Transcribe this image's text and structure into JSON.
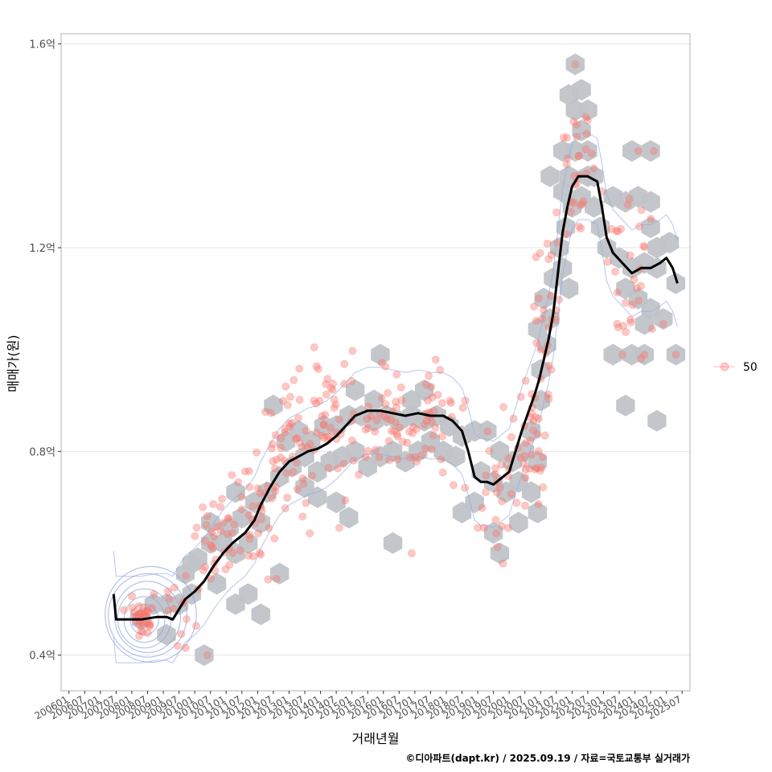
{
  "chart_data": {
    "type": "scatter",
    "title": "",
    "xlabel": "거래년월",
    "ylabel": "매매가(원)",
    "caption": "©디아파트(dapt.kr) / 2025.09.19 / 자료=국토교통부 실거래가",
    "x_tick_labels": [
      "200601",
      "200607",
      "200701",
      "200707",
      "200801",
      "200807",
      "200901",
      "200907",
      "201001",
      "201007",
      "201101",
      "201107",
      "201201",
      "201207",
      "201301",
      "201307",
      "201401",
      "201407",
      "201501",
      "201507",
      "201601",
      "201607",
      "201701",
      "201707",
      "201801",
      "201807",
      "201901",
      "201907",
      "202001",
      "202007",
      "202101",
      "202107",
      "202201",
      "202207",
      "202301",
      "202307",
      "202401",
      "202407",
      "202501",
      "202507"
    ],
    "y_ticks": [
      {
        "value": 0.4,
        "label": "0.4억"
      },
      {
        "value": 0.8,
        "label": "0.8억"
      },
      {
        "value": 1.2,
        "label": "1.2억"
      },
      {
        "value": 1.6,
        "label": "1.6억"
      }
    ],
    "xlim": [
      2005.75,
      2025.75
    ],
    "ylim": [
      0.33,
      1.62
    ],
    "legend": {
      "label": "50",
      "position": "right"
    },
    "colors": {
      "points": "#f8766d",
      "hex": "#c0c4c8",
      "line": "#000000",
      "contour": "#8fa8e8"
    },
    "moving_average": [
      [
        2007.42,
        0.52
      ],
      [
        2007.5,
        0.47
      ],
      [
        2007.8,
        0.47
      ],
      [
        2008.3,
        0.47
      ],
      [
        2008.8,
        0.475
      ],
      [
        2009.1,
        0.475
      ],
      [
        2009.3,
        0.47
      ],
      [
        2009.5,
        0.49
      ],
      [
        2009.7,
        0.51
      ],
      [
        2010.0,
        0.525
      ],
      [
        2010.3,
        0.545
      ],
      [
        2010.6,
        0.575
      ],
      [
        2010.9,
        0.6
      ],
      [
        2011.2,
        0.62
      ],
      [
        2011.6,
        0.64
      ],
      [
        2011.9,
        0.665
      ],
      [
        2012.1,
        0.695
      ],
      [
        2012.4,
        0.73
      ],
      [
        2012.7,
        0.76
      ],
      [
        2013.0,
        0.78
      ],
      [
        2013.3,
        0.79
      ],
      [
        2013.6,
        0.8
      ],
      [
        2013.9,
        0.805
      ],
      [
        2014.2,
        0.815
      ],
      [
        2014.5,
        0.83
      ],
      [
        2014.8,
        0.85
      ],
      [
        2015.1,
        0.87
      ],
      [
        2015.5,
        0.88
      ],
      [
        2015.9,
        0.88
      ],
      [
        2016.3,
        0.875
      ],
      [
        2016.7,
        0.87
      ],
      [
        2017.1,
        0.875
      ],
      [
        2017.5,
        0.87
      ],
      [
        2017.9,
        0.87
      ],
      [
        2018.2,
        0.86
      ],
      [
        2018.5,
        0.84
      ],
      [
        2018.7,
        0.8
      ],
      [
        2018.9,
        0.75
      ],
      [
        2019.1,
        0.74
      ],
      [
        2019.3,
        0.74
      ],
      [
        2019.5,
        0.735
      ],
      [
        2019.7,
        0.745
      ],
      [
        2020.0,
        0.76
      ],
      [
        2020.2,
        0.8
      ],
      [
        2020.4,
        0.84
      ],
      [
        2020.6,
        0.875
      ],
      [
        2020.8,
        0.91
      ],
      [
        2020.95,
        0.94
      ],
      [
        2021.1,
        0.98
      ],
      [
        2021.25,
        1.02
      ],
      [
        2021.4,
        1.07
      ],
      [
        2021.55,
        1.15
      ],
      [
        2021.7,
        1.23
      ],
      [
        2021.85,
        1.28
      ],
      [
        2022.0,
        1.32
      ],
      [
        2022.2,
        1.34
      ],
      [
        2022.5,
        1.34
      ],
      [
        2022.8,
        1.33
      ],
      [
        2022.95,
        1.28
      ],
      [
        2023.1,
        1.22
      ],
      [
        2023.3,
        1.19
      ],
      [
        2023.6,
        1.17
      ],
      [
        2023.9,
        1.15
      ],
      [
        2024.2,
        1.16
      ],
      [
        2024.5,
        1.16
      ],
      [
        2024.8,
        1.17
      ],
      [
        2025.0,
        1.18
      ],
      [
        2025.2,
        1.16
      ],
      [
        2025.35,
        1.13
      ]
    ],
    "point_clusters": [
      {
        "x": 2008.3,
        "y": 0.47,
        "sx": 0.35,
        "sy": 0.02,
        "n": 34
      },
      {
        "x": 2009.5,
        "y": 0.5,
        "sx": 0.45,
        "sy": 0.04,
        "n": 14
      },
      {
        "x": 2010.7,
        "y": 0.62,
        "sx": 0.6,
        "sy": 0.04,
        "n": 32
      },
      {
        "x": 2011.9,
        "y": 0.7,
        "sx": 0.55,
        "sy": 0.06,
        "n": 32
      },
      {
        "x": 2013.0,
        "y": 0.79,
        "sx": 0.7,
        "sy": 0.07,
        "n": 44
      },
      {
        "x": 2014.5,
        "y": 0.85,
        "sx": 0.8,
        "sy": 0.06,
        "n": 50
      },
      {
        "x": 2016.2,
        "y": 0.86,
        "sx": 0.8,
        "sy": 0.05,
        "n": 40
      },
      {
        "x": 2017.7,
        "y": 0.85,
        "sx": 0.7,
        "sy": 0.06,
        "n": 32
      },
      {
        "x": 2019.6,
        "y": 0.74,
        "sx": 0.6,
        "sy": 0.07,
        "n": 28
      },
      {
        "x": 2020.7,
        "y": 0.8,
        "sx": 0.4,
        "sy": 0.07,
        "n": 30
      },
      {
        "x": 2021.2,
        "y": 1.02,
        "sx": 0.35,
        "sy": 0.12,
        "n": 26
      },
      {
        "x": 2022.2,
        "y": 1.34,
        "sx": 0.5,
        "sy": 0.06,
        "n": 30
      },
      {
        "x": 2023.8,
        "y": 1.17,
        "sx": 0.8,
        "sy": 0.09,
        "n": 30
      }
    ],
    "outlier_points": [
      [
        2010.4,
        0.4
      ],
      [
        2014.6,
        0.65
      ],
      [
        2016.9,
        0.6
      ],
      [
        2017.8,
        0.96
      ],
      [
        2019.0,
        0.65
      ],
      [
        2019.8,
        0.58
      ],
      [
        2021.0,
        1.0
      ],
      [
        2022.1,
        1.56
      ],
      [
        2022.5,
        1.45
      ],
      [
        2023.6,
        0.99
      ],
      [
        2024.3,
        0.99
      ],
      [
        2024.1,
        1.39
      ],
      [
        2024.6,
        1.39
      ],
      [
        2024.9,
        1.05
      ],
      [
        2025.3,
        0.99
      ],
      [
        2012.6,
        0.55
      ],
      [
        2008.7,
        0.52
      ]
    ],
    "hex_centers": [
      [
        2008.3,
        0.47
      ],
      [
        2008.7,
        0.5
      ],
      [
        2009.1,
        0.5
      ],
      [
        2009.5,
        0.5
      ],
      [
        2009.9,
        0.52
      ],
      [
        2009.7,
        0.56
      ],
      [
        2010.1,
        0.59
      ],
      [
        2010.5,
        0.62
      ],
      [
        2010.9,
        0.62
      ],
      [
        2010.5,
        0.66
      ],
      [
        2011.3,
        0.6
      ],
      [
        2011.7,
        0.62
      ],
      [
        2011.1,
        0.65
      ],
      [
        2011.5,
        0.67
      ],
      [
        2011.9,
        0.7
      ],
      [
        2012.3,
        0.72
      ],
      [
        2011.3,
        0.72
      ],
      [
        2012.1,
        0.66
      ],
      [
        2012.7,
        0.75
      ],
      [
        2013.1,
        0.77
      ],
      [
        2013.5,
        0.79
      ],
      [
        2012.9,
        0.82
      ],
      [
        2013.3,
        0.84
      ],
      [
        2013.7,
        0.82
      ],
      [
        2014.1,
        0.85
      ],
      [
        2014.5,
        0.85
      ],
      [
        2014.9,
        0.87
      ],
      [
        2015.3,
        0.87
      ],
      [
        2015.7,
        0.86
      ],
      [
        2016.1,
        0.87
      ],
      [
        2016.5,
        0.86
      ],
      [
        2016.9,
        0.87
      ],
      [
        2017.3,
        0.86
      ],
      [
        2017.7,
        0.87
      ],
      [
        2018.1,
        0.85
      ],
      [
        2018.5,
        0.83
      ],
      [
        2013.9,
        0.76
      ],
      [
        2014.3,
        0.78
      ],
      [
        2014.7,
        0.79
      ],
      [
        2015.1,
        0.8
      ],
      [
        2015.5,
        0.77
      ],
      [
        2015.9,
        0.79
      ],
      [
        2016.3,
        0.8
      ],
      [
        2016.7,
        0.78
      ],
      [
        2017.1,
        0.8
      ],
      [
        2017.5,
        0.82
      ],
      [
        2017.9,
        0.8
      ],
      [
        2018.3,
        0.79
      ],
      [
        2012.5,
        0.89
      ],
      [
        2015.1,
        0.92
      ],
      [
        2015.7,
        0.9
      ],
      [
        2016.9,
        0.9
      ],
      [
        2017.3,
        0.92
      ],
      [
        2015.9,
        0.99
      ],
      [
        2018.9,
        0.84
      ],
      [
        2019.3,
        0.84
      ],
      [
        2019.7,
        0.8
      ],
      [
        2020.1,
        0.78
      ],
      [
        2019.1,
        0.76
      ],
      [
        2019.5,
        0.74
      ],
      [
        2019.9,
        0.72
      ],
      [
        2020.3,
        0.74
      ],
      [
        2020.5,
        0.8
      ],
      [
        2020.7,
        0.84
      ],
      [
        2020.9,
        0.78
      ],
      [
        2020.7,
        0.72
      ],
      [
        2020.9,
        0.68
      ],
      [
        2020.3,
        0.66
      ],
      [
        2019.5,
        0.64
      ],
      [
        2019.7,
        0.6
      ],
      [
        2018.9,
        0.7
      ],
      [
        2018.5,
        0.68
      ],
      [
        2014.5,
        0.7
      ],
      [
        2014.9,
        0.67
      ],
      [
        2013.9,
        0.71
      ],
      [
        2013.5,
        0.73
      ],
      [
        2016.3,
        0.62
      ],
      [
        2012.7,
        0.56
      ],
      [
        2009.1,
        0.44
      ],
      [
        2010.3,
        0.4
      ],
      [
        2011.7,
        0.52
      ],
      [
        2011.3,
        0.5
      ],
      [
        2012.1,
        0.48
      ],
      [
        2009.9,
        0.58
      ],
      [
        2010.7,
        0.54
      ],
      [
        2021.0,
        0.9
      ],
      [
        2021.0,
        0.96
      ],
      [
        2021.2,
        1.01
      ],
      [
        2020.9,
        1.04
      ],
      [
        2021.3,
        1.06
      ],
      [
        2021.1,
        1.1
      ],
      [
        2021.4,
        1.14
      ],
      [
        2021.7,
        1.16
      ],
      [
        2021.9,
        1.12
      ],
      [
        2021.6,
        1.2
      ],
      [
        2021.8,
        1.24
      ],
      [
        2022.0,
        1.28
      ],
      [
        2021.7,
        1.31
      ],
      [
        2021.3,
        1.34
      ],
      [
        2021.9,
        1.34
      ],
      [
        2022.3,
        1.3
      ],
      [
        2022.5,
        1.34
      ],
      [
        2022.7,
        1.28
      ],
      [
        2022.9,
        1.24
      ],
      [
        2021.7,
        1.39
      ],
      [
        2022.1,
        1.39
      ],
      [
        2022.5,
        1.39
      ],
      [
        2022.3,
        1.43
      ],
      [
        2022.1,
        1.47
      ],
      [
        2022.5,
        1.47
      ],
      [
        2021.9,
        1.5
      ],
      [
        2022.3,
        1.51
      ],
      [
        2022.1,
        1.56
      ],
      [
        2022.7,
        1.34
      ],
      [
        2023.3,
        1.3
      ],
      [
        2023.7,
        1.29
      ],
      [
        2024.1,
        1.3
      ],
      [
        2024.5,
        1.29
      ],
      [
        2023.1,
        1.2
      ],
      [
        2023.5,
        1.18
      ],
      [
        2023.9,
        1.16
      ],
      [
        2024.3,
        1.17
      ],
      [
        2024.7,
        1.16
      ],
      [
        2024.5,
        1.24
      ],
      [
        2024.7,
        1.2
      ],
      [
        2025.1,
        1.21
      ],
      [
        2025.3,
        1.13
      ],
      [
        2023.7,
        1.12
      ],
      [
        2024.1,
        1.1
      ],
      [
        2024.5,
        1.08
      ],
      [
        2024.3,
        1.05
      ],
      [
        2024.9,
        1.06
      ],
      [
        2023.3,
        0.99
      ],
      [
        2023.9,
        0.99
      ],
      [
        2024.3,
        0.99
      ],
      [
        2025.3,
        0.99
      ],
      [
        2024.7,
        0.86
      ],
      [
        2023.7,
        0.89
      ],
      [
        2023.9,
        1.39
      ],
      [
        2024.5,
        1.39
      ]
    ],
    "density_contours": [
      {
        "cx": 2008.4,
        "cy": 0.47,
        "rx": 0.45,
        "ry": 0.03
      },
      {
        "cx": 2008.4,
        "cy": 0.47,
        "rx": 0.65,
        "ry": 0.045
      },
      {
        "cx": 2008.4,
        "cy": 0.472,
        "rx": 0.85,
        "ry": 0.058
      },
      {
        "cx": 2008.5,
        "cy": 0.475,
        "rx": 1.05,
        "ry": 0.07
      },
      {
        "cx": 2008.5,
        "cy": 0.478,
        "rx": 1.25,
        "ry": 0.082
      },
      {
        "cx": 2008.6,
        "cy": 0.48,
        "rx": 1.45,
        "ry": 0.094
      }
    ]
  }
}
